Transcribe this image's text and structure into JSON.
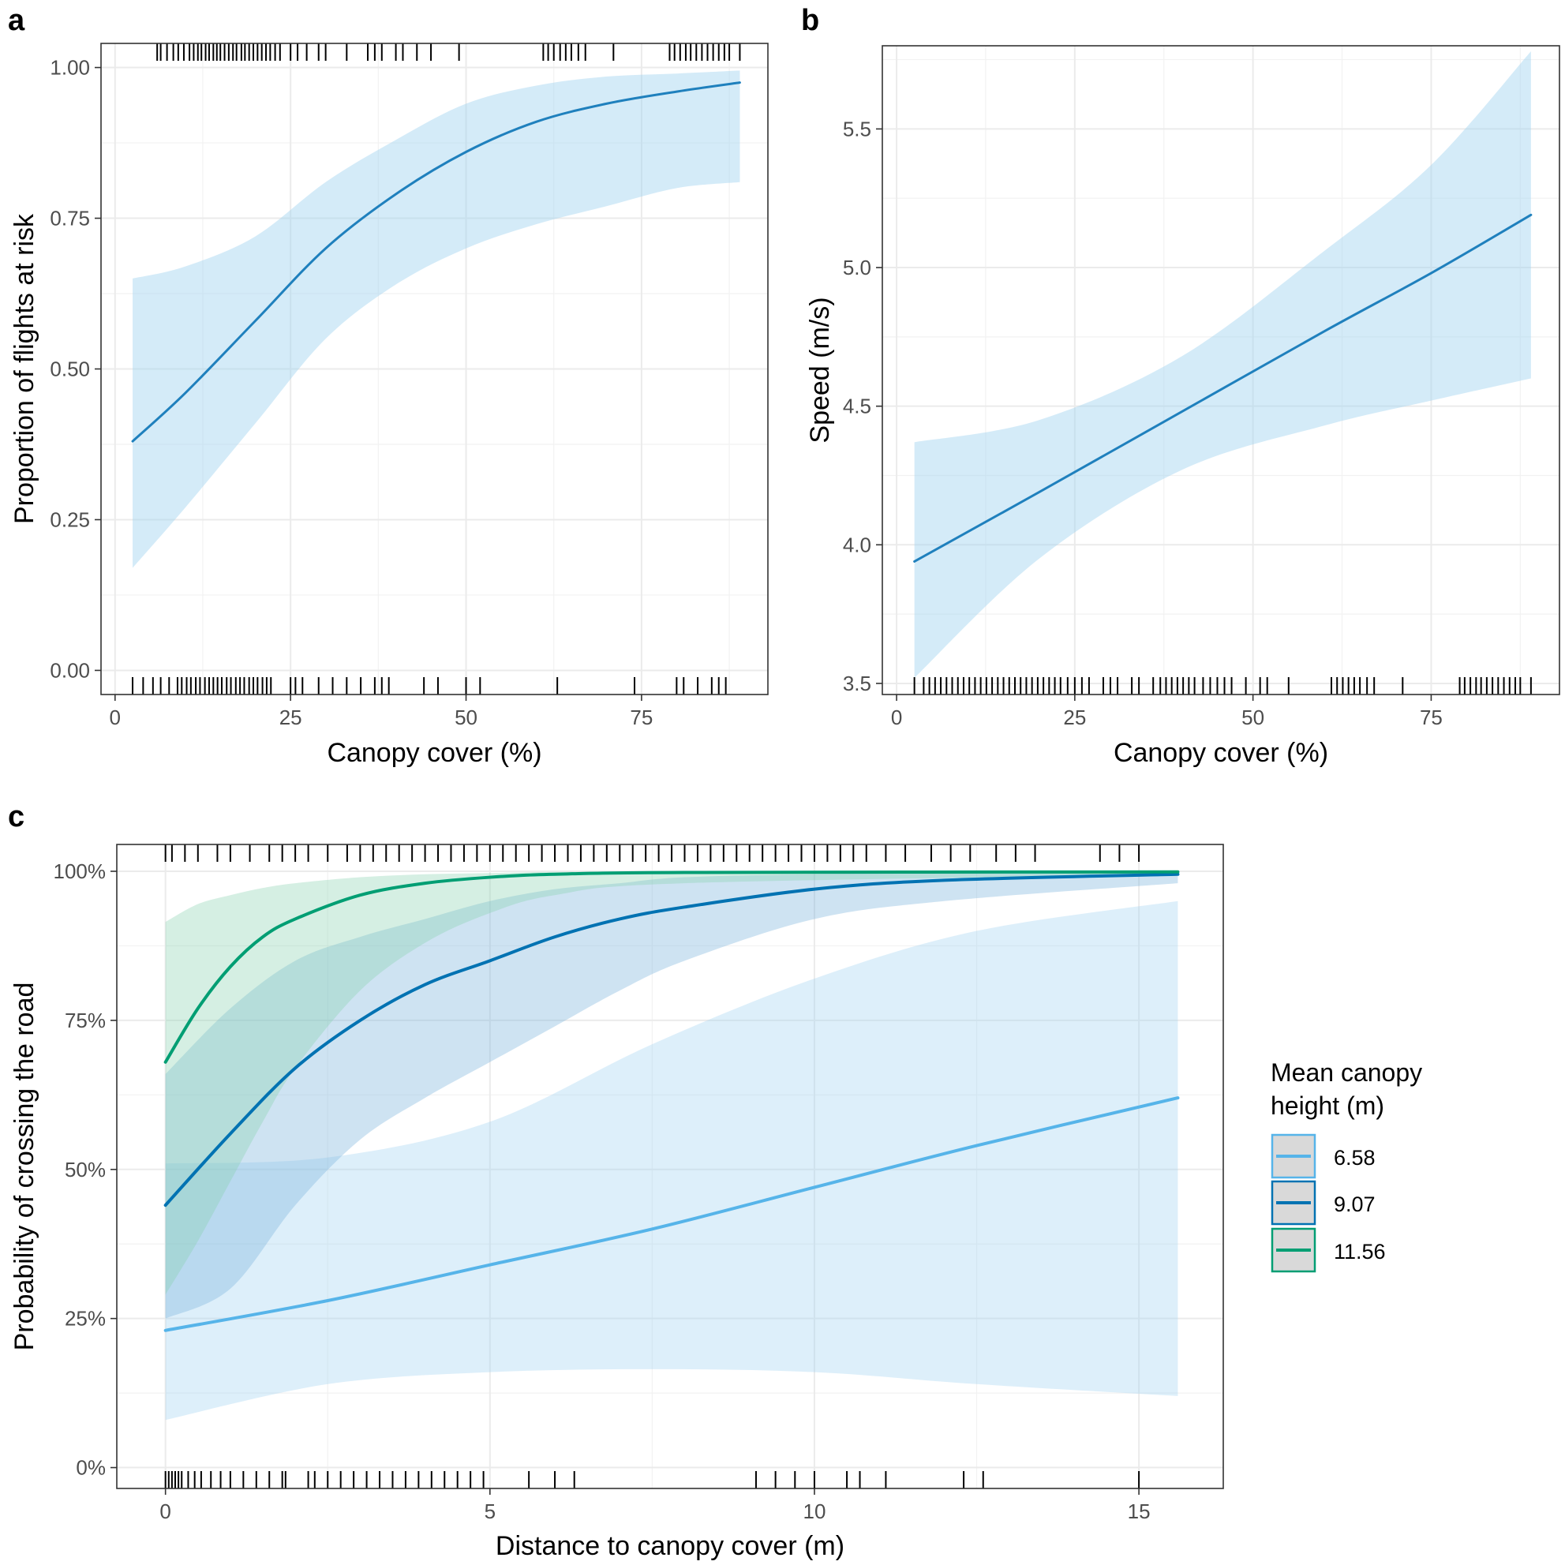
{
  "colors": {
    "band_light": "#9fd2f0",
    "band_mid": "#7eb6dc",
    "band_green": "#86d1b0",
    "line_light": "#56b4e9",
    "line_mid": "#0072b2",
    "line_green": "#009e73",
    "line_ab": "#1f80bd",
    "grid": "#ebebeb",
    "panel_border": "#333333",
    "rug": "#000000"
  },
  "chart_data": [
    {
      "panel": "a",
      "type": "line",
      "xlabel": "Canopy cover (%)",
      "ylabel": "Proportion of flights at risk",
      "xlim": [
        -2,
        93
      ],
      "ylim": [
        -0.04,
        1.04
      ],
      "x_ticks": [
        0,
        25,
        50,
        75
      ],
      "x_tick_labels": [
        "0",
        "25",
        "50",
        "75"
      ],
      "y_ticks": [
        0,
        0.25,
        0.5,
        0.75,
        1
      ],
      "y_tick_labels": [
        "0.00",
        "0.25",
        "0.50",
        "0.75",
        "1.00"
      ],
      "grid": true,
      "series": [
        {
          "x": [
            2.5,
            10,
            20,
            30,
            40,
            50,
            60,
            70,
            80,
            89
          ],
          "y": [
            0.38,
            0.46,
            0.58,
            0.7,
            0.79,
            0.86,
            0.91,
            0.94,
            0.96,
            0.975
          ],
          "lower": [
            0.17,
            0.27,
            0.41,
            0.55,
            0.64,
            0.7,
            0.74,
            0.77,
            0.8,
            0.81
          ],
          "upper": [
            0.65,
            0.67,
            0.72,
            0.81,
            0.88,
            0.94,
            0.97,
            0.985,
            0.99,
            0.995
          ]
        }
      ],
      "rug_top": [
        6,
        6.5,
        7.4,
        8.3,
        9,
        9.8,
        10.6,
        11.2,
        11.8,
        12.3,
        12.9,
        13.4,
        14,
        14.5,
        15,
        15.6,
        16.2,
        16.8,
        17.3,
        18,
        18.5,
        19.1,
        19.7,
        20.3,
        20.9,
        21.5,
        22.1,
        22.8,
        23.5,
        25,
        26,
        27.3,
        29,
        30,
        33,
        36,
        37,
        38,
        40,
        41,
        43,
        45,
        49,
        61,
        61.7,
        62.5,
        63.4,
        64.2,
        65,
        66,
        67,
        71,
        79,
        79.7,
        80.5,
        81.3,
        82,
        82.8,
        83.6,
        84.4,
        85.2,
        86,
        86.8,
        87.5,
        89
      ],
      "rug_bottom": [
        2.5,
        4,
        5.4,
        6.5,
        7.7,
        8.9,
        9.5,
        10.2,
        10.8,
        11.5,
        12.1,
        12.8,
        13.4,
        14,
        14.6,
        15.2,
        15.9,
        16.5,
        17.2,
        17.8,
        18.4,
        19.1,
        19.7,
        20.3,
        21,
        21.6,
        22.2,
        25,
        25.7,
        26.7,
        29,
        31,
        33,
        35,
        37,
        38,
        39,
        44,
        46,
        50,
        52,
        63,
        74,
        80,
        81,
        83,
        85,
        86,
        87
      ],
      "title": ""
    },
    {
      "panel": "b",
      "type": "line",
      "xlabel": "Canopy cover (%)",
      "ylabel": "Speed (m/s)",
      "xlim": [
        -2,
        93
      ],
      "ylim": [
        3.46,
        5.8
      ],
      "x_ticks": [
        0,
        25,
        50,
        75
      ],
      "x_tick_labels": [
        "0",
        "25",
        "50",
        "75"
      ],
      "y_ticks": [
        3.5,
        4.0,
        4.5,
        5.0,
        5.5
      ],
      "y_tick_labels": [
        "3.5",
        "4.0",
        "4.5",
        "5.0",
        "5.5"
      ],
      "grid": true,
      "series": [
        {
          "x": [
            2.5,
            20,
            40,
            60,
            75,
            89
          ],
          "y": [
            3.94,
            4.19,
            4.48,
            4.77,
            4.98,
            5.19
          ],
          "lower": [
            3.52,
            3.95,
            4.27,
            4.43,
            4.52,
            4.6
          ],
          "upper": [
            4.37,
            4.45,
            4.68,
            5.06,
            5.37,
            5.78
          ]
        }
      ],
      "rug_bottom": [
        2.5,
        3.8,
        4.6,
        5.4,
        6.2,
        7,
        7.8,
        8.6,
        9.4,
        10.2,
        11,
        11.8,
        12.6,
        13.4,
        14.2,
        15,
        15.8,
        16.6,
        17.4,
        18.2,
        19,
        19.8,
        20.6,
        21.4,
        22.2,
        23,
        24,
        25,
        26,
        27,
        29,
        30,
        31,
        33,
        34,
        36,
        37,
        37.8,
        38.6,
        39.4,
        40.2,
        41,
        41.8,
        43,
        44,
        45,
        46,
        47,
        49,
        51,
        52,
        55,
        61,
        61.8,
        62.6,
        63.4,
        64.2,
        65,
        66,
        67,
        71,
        79,
        79.7,
        80.5,
        81.3,
        82,
        82.8,
        83.6,
        84.4,
        85.2,
        86,
        86.8,
        87.5,
        89
      ],
      "title": ""
    },
    {
      "panel": "c",
      "type": "line",
      "xlabel": "Distance to canopy cover (m)",
      "ylabel": "Probability of crossing the road",
      "xlim": [
        -0.75,
        16.3
      ],
      "ylim": [
        -0.035,
        1.045
      ],
      "x_ticks": [
        0,
        5,
        10,
        15
      ],
      "x_tick_labels": [
        "0",
        "5",
        "10",
        "15"
      ],
      "y_ticks": [
        0,
        0.25,
        0.5,
        0.75,
        1
      ],
      "y_tick_labels": [
        "0%",
        "25%",
        "50%",
        "75%",
        "100%"
      ],
      "grid": true,
      "legend": {
        "title_lines": [
          "Mean canopy",
          "height (m)"
        ],
        "position": "right",
        "entries": [
          "6.58",
          "9.07",
          "11.56"
        ]
      },
      "series": [
        {
          "name": "6.58",
          "x": [
            0,
            2.5,
            5,
            7.5,
            10,
            12.5,
            15.6
          ],
          "y": [
            0.23,
            0.28,
            0.34,
            0.4,
            0.47,
            0.54,
            0.62
          ],
          "lower": [
            0.08,
            0.14,
            0.16,
            0.165,
            0.16,
            0.14,
            0.12
          ],
          "upper": [
            0.51,
            0.52,
            0.58,
            0.71,
            0.82,
            0.9,
            0.95
          ]
        },
        {
          "name": "9.07",
          "x": [
            0,
            1,
            2,
            3,
            4,
            5,
            6,
            7,
            8,
            10,
            12,
            15.6
          ],
          "y": [
            0.44,
            0.56,
            0.67,
            0.75,
            0.81,
            0.85,
            0.89,
            0.92,
            0.94,
            0.97,
            0.985,
            0.995
          ],
          "lower": [
            0.25,
            0.3,
            0.44,
            0.55,
            0.62,
            0.68,
            0.74,
            0.8,
            0.85,
            0.92,
            0.95,
            0.98
          ],
          "upper": [
            0.66,
            0.77,
            0.85,
            0.89,
            0.92,
            0.95,
            0.97,
            0.98,
            0.99,
            0.995,
            0.998,
            0.999
          ]
        },
        {
          "name": "11.56",
          "x": [
            0,
            0.5,
            1,
            1.5,
            2,
            3,
            4,
            5,
            6,
            8,
            15.6
          ],
          "y": [
            0.68,
            0.77,
            0.84,
            0.89,
            0.92,
            0.96,
            0.98,
            0.99,
            0.995,
            0.998,
            0.999
          ],
          "lower": [
            0.29,
            0.38,
            0.48,
            0.58,
            0.67,
            0.8,
            0.88,
            0.93,
            0.96,
            0.98,
            0.995
          ],
          "upper": [
            0.915,
            0.945,
            0.96,
            0.972,
            0.98,
            0.99,
            0.995,
            0.997,
            0.999,
            0.9995,
            0.9999
          ]
        }
      ],
      "rug_top": [
        0,
        0.1,
        0.3,
        0.5,
        0.8,
        1,
        1.3,
        1.6,
        1.8,
        2,
        2.2,
        2.5,
        2.8,
        3,
        3.2,
        3.4,
        3.6,
        3.8,
        4,
        4.2,
        4.4,
        4.6,
        4.8,
        5,
        5.2,
        5.4,
        5.6,
        5.8,
        6,
        6.2,
        6.4,
        6.6,
        6.8,
        7,
        7.2,
        7.4,
        7.6,
        7.8,
        8,
        8.2,
        8.4,
        8.6,
        8.8,
        9,
        9.2,
        9.4,
        9.6,
        9.8,
        10,
        10.2,
        10.4,
        10.6,
        10.8,
        11.1,
        11.4,
        11.8,
        12.1,
        12.4,
        12.8,
        13.1,
        13.4,
        14.4,
        14.7,
        15
      ],
      "rug_bottom": [
        0,
        0.05,
        0.1,
        0.15,
        0.2,
        0.25,
        0.35,
        0.45,
        0.55,
        0.7,
        0.85,
        1,
        1.2,
        1.4,
        1.6,
        1.8,
        1.85,
        2.2,
        2.3,
        2.5,
        2.7,
        2.9,
        3.1,
        3.3,
        3.5,
        3.7,
        3.9,
        4.1,
        4.3,
        4.5,
        4.7,
        4.9,
        5.6,
        6,
        6.3,
        9.1,
        9.4,
        9.7,
        10,
        10.5,
        10.7,
        11.1,
        12.3,
        12.6,
        15
      ],
      "title": ""
    }
  ],
  "panels": {
    "a_label": "a",
    "b_label": "b",
    "c_label": "c"
  }
}
